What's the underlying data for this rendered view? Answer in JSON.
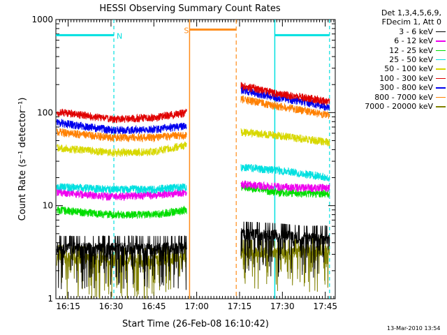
{
  "chart_data": {
    "type": "line",
    "title": "HESSI Observing Summary Count Rates",
    "xlabel": "Start Time (26-Feb-08 16:10:42)",
    "ylabel": "Count Rate (s⁻¹ detector⁻¹)",
    "yscale": "log",
    "ylim": [
      1,
      1000
    ],
    "xlim": [
      "16:10:42",
      "17:48:30"
    ],
    "x_ticks": [
      "16:15",
      "16:30",
      "16:45",
      "17:00",
      "17:15",
      "17:30",
      "17:45"
    ],
    "y_ticks": [
      "1",
      "10",
      "100",
      "1000"
    ],
    "grid": false,
    "legend_placement": "right",
    "legend_header": [
      "Det 1,3,4,5,6,9,",
      "FDecim 1, Att 0"
    ],
    "flags": [
      {
        "label": "N",
        "type": "night",
        "color": "#00e0e0",
        "x_start": "16:10:42",
        "x_end": "16:31:00",
        "level": 680
      },
      {
        "label": "S",
        "type": "saa",
        "color": "#ff8c1a",
        "x_start": "16:57:30",
        "x_end": "17:13:50",
        "level": 780
      },
      {
        "label": "",
        "type": "night",
        "color": "#00e0e0",
        "x_start": "17:27:20",
        "x_end": "17:46:30",
        "level": 680
      }
    ],
    "gaps": [
      [
        "16:57:30",
        "17:13:50"
      ]
    ],
    "series": [
      {
        "name": "3 - 6 keV",
        "color": "#000000",
        "before": [
          3.5,
          3.5,
          3.5,
          3.5
        ],
        "after": [
          5,
          4.8,
          4.5,
          4.5
        ]
      },
      {
        "name": "6 - 12 keV",
        "color": "#ee00ee",
        "before": [
          14,
          12.5,
          13,
          14
        ],
        "after": [
          17,
          16,
          15.5,
          15.5
        ]
      },
      {
        "name": "12 - 25 keV",
        "color": "#00dd00",
        "before": [
          9,
          8,
          8,
          9
        ],
        "after": [
          16,
          14,
          13.5,
          13.5
        ]
      },
      {
        "name": "25 - 50 keV",
        "color": "#00e0e0",
        "before": [
          16,
          15,
          15,
          16
        ],
        "after": [
          26,
          24,
          22,
          20
        ]
      },
      {
        "name": "50 - 100 keV",
        "color": "#d8d800",
        "before": [
          42,
          37,
          38,
          45
        ],
        "after": [
          62,
          57,
          52,
          48
        ]
      },
      {
        "name": "100 - 300 keV",
        "color": "#e00000",
        "before": [
          102,
          85,
          88,
          100
        ],
        "after": [
          195,
          160,
          145,
          130
        ]
      },
      {
        "name": "300 - 800 keV",
        "color": "#0000ee",
        "before": [
          78,
          65,
          66,
          72
        ],
        "after": [
          175,
          145,
          130,
          112
        ]
      },
      {
        "name": "800 - 7000 keV",
        "color": "#ff8000",
        "before": [
          62,
          54,
          54,
          58
        ],
        "after": [
          140,
          118,
          105,
          92
        ]
      },
      {
        "name": "7000 - 20000 keV",
        "color": "#808000",
        "before": [
          2.8,
          2.6,
          2.6,
          2.8
        ],
        "after": [
          3.2,
          3.1,
          3.3,
          3.3
        ]
      }
    ],
    "series_times": {
      "before": [
        "16:11:00",
        "16:30:00",
        "16:45:00",
        "16:56:30"
      ],
      "after": [
        "17:15:30",
        "17:28:00",
        "17:38:00",
        "17:46:30"
      ]
    }
  },
  "footer": {
    "timestamp": "13-Mar-2010 13:54"
  }
}
